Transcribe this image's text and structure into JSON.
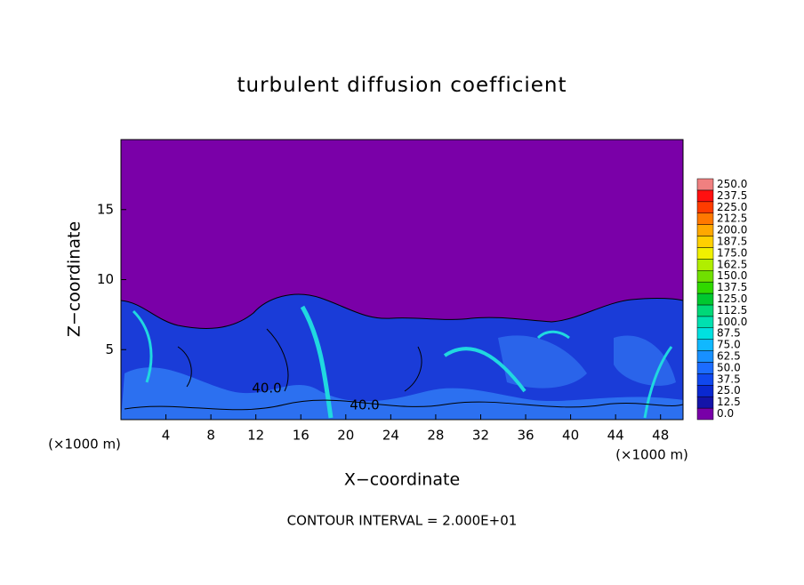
{
  "chart_data": {
    "type": "contour",
    "title": "turbulent diffusion coefficient",
    "x_label": "X−coordinate",
    "y_label": "Z−coordinate",
    "x_unit_left": "(×1000 m)",
    "x_unit_right": "(×1000 m)",
    "footer": "CONTOUR INTERVAL = 2.000E+01",
    "contour_labels": [
      "40.0",
      "40.0"
    ],
    "xlim": [
      0,
      50
    ],
    "ylim": [
      0,
      20
    ],
    "xticks": [
      4,
      8,
      12,
      16,
      20,
      24,
      28,
      32,
      36,
      40,
      44,
      48
    ],
    "yticks": [
      5,
      10,
      15
    ],
    "colorbar": {
      "levels": [
        {
          "value": 0,
          "label": "0.0"
        },
        {
          "value": 12.5,
          "label": "12.5"
        },
        {
          "value": 25,
          "label": "25.0"
        },
        {
          "value": 37.5,
          "label": "37.5"
        },
        {
          "value": 50,
          "label": "50.0"
        },
        {
          "value": 62.5,
          "label": "62.5"
        },
        {
          "value": 75,
          "label": "75.0"
        },
        {
          "value": 87.5,
          "label": "87.5"
        },
        {
          "value": 100,
          "label": "100.0"
        },
        {
          "value": 112.5,
          "label": "112.5"
        },
        {
          "value": 125,
          "label": "125.0"
        },
        {
          "value": 137.5,
          "label": "137.5"
        },
        {
          "value": 150,
          "label": "150.0"
        },
        {
          "value": 162.5,
          "label": "162.5"
        },
        {
          "value": 175,
          "label": "175.0"
        },
        {
          "value": 187.5,
          "label": "187.5"
        },
        {
          "value": 200,
          "label": "200.0"
        },
        {
          "value": 212.5,
          "label": "212.5"
        },
        {
          "value": 225,
          "label": "225.0"
        },
        {
          "value": 237.5,
          "label": "237.5"
        },
        {
          "value": 250,
          "label": "250.0"
        }
      ],
      "colors": [
        "#7800a8",
        "#1414a8",
        "#0a28d0",
        "#1048ee",
        "#1c6cff",
        "#1890ff",
        "#10b8ff",
        "#00e0e0",
        "#00e0b0",
        "#00d878",
        "#00c830",
        "#30d800",
        "#70e000",
        "#b0ee00",
        "#f0f000",
        "#ffd000",
        "#ffa800",
        "#ff7800",
        "#ff3c00",
        "#ff1010",
        "#f08080"
      ]
    }
  }
}
